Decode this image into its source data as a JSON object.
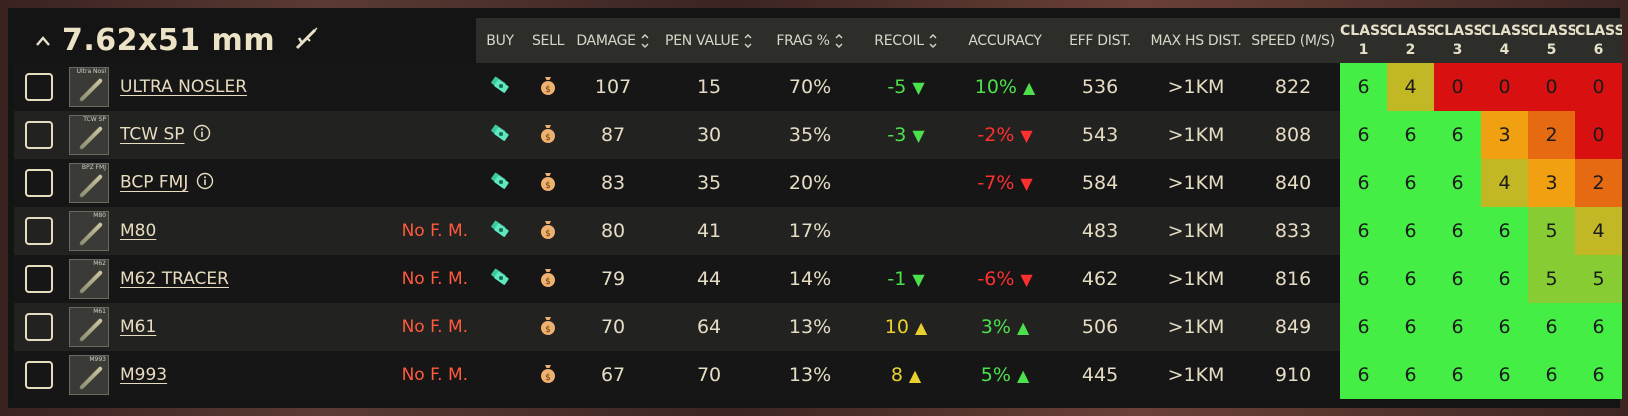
{
  "caliber": {
    "title": "7.62x51 mm",
    "collapse_icon": "chevron-up-icon",
    "rifle_icon": "rifle-icon"
  },
  "headers": {
    "buy": "BUY",
    "sell": "SELL",
    "damage": "DAMAGE",
    "pen": "PEN VALUE",
    "frag": "FRAG %",
    "recoil": "RECOIL",
    "accuracy": "ACCURACY",
    "eff": "EFF DIST.",
    "maxhs": "MAX HS DIST.",
    "speed": "SPEED (M/S)",
    "class_word": "CLASS",
    "class_nums": [
      "1",
      "2",
      "3",
      "4",
      "5",
      "6"
    ]
  },
  "colors": {
    "c6": "#44ee44",
    "c5": "#88cc33",
    "c4": "#c2b724",
    "c3": "#f0a010",
    "c2": "#e66a12",
    "c0": "#d81010"
  },
  "rows": [
    {
      "name": "ULTRA NOSLER",
      "thumb": "Ultra Nosl",
      "info": false,
      "nofm": "",
      "buy": true,
      "sell": true,
      "damage": "107",
      "pen": "15",
      "frag": "70%",
      "recoil": "-5",
      "recoil_dir": "down",
      "recoil_color": "pos",
      "accuracy": "10%",
      "accuracy_dir": "up",
      "accuracy_color": "pos",
      "eff": "536",
      "maxhs": ">1KM",
      "speed": "822",
      "classes": [
        "6",
        "4",
        "0",
        "0",
        "0",
        "0"
      ]
    },
    {
      "name": "TCW SP",
      "thumb": "TCW SP",
      "info": true,
      "nofm": "",
      "buy": true,
      "sell": true,
      "damage": "87",
      "pen": "30",
      "frag": "35%",
      "recoil": "-3",
      "recoil_dir": "down",
      "recoil_color": "pos",
      "accuracy": "-2%",
      "accuracy_dir": "down",
      "accuracy_color": "neg",
      "eff": "543",
      "maxhs": ">1KM",
      "speed": "808",
      "classes": [
        "6",
        "6",
        "6",
        "3",
        "2",
        "0"
      ]
    },
    {
      "name": "BCP FMJ",
      "thumb": "BPZ FMJ",
      "info": true,
      "nofm": "",
      "buy": true,
      "sell": true,
      "damage": "83",
      "pen": "35",
      "frag": "20%",
      "recoil": "",
      "recoil_dir": "",
      "recoil_color": "",
      "accuracy": "-7%",
      "accuracy_dir": "down",
      "accuracy_color": "neg",
      "eff": "584",
      "maxhs": ">1KM",
      "speed": "840",
      "classes": [
        "6",
        "6",
        "6",
        "4",
        "3",
        "2"
      ]
    },
    {
      "name": "M80",
      "thumb": "M80",
      "info": false,
      "nofm": "No F. M.",
      "buy": true,
      "sell": true,
      "damage": "80",
      "pen": "41",
      "frag": "17%",
      "recoil": "",
      "recoil_dir": "",
      "recoil_color": "",
      "accuracy": "",
      "accuracy_dir": "",
      "accuracy_color": "",
      "eff": "483",
      "maxhs": ">1KM",
      "speed": "833",
      "classes": [
        "6",
        "6",
        "6",
        "6",
        "5",
        "4"
      ]
    },
    {
      "name": "M62 TRACER",
      "thumb": "M62",
      "info": false,
      "nofm": "No F. M.",
      "buy": true,
      "sell": true,
      "damage": "79",
      "pen": "44",
      "frag": "14%",
      "recoil": "-1",
      "recoil_dir": "down",
      "recoil_color": "pos",
      "accuracy": "-6%",
      "accuracy_dir": "down",
      "accuracy_color": "neg",
      "eff": "462",
      "maxhs": ">1KM",
      "speed": "816",
      "classes": [
        "6",
        "6",
        "6",
        "6",
        "5",
        "5"
      ]
    },
    {
      "name": "M61",
      "thumb": "M61",
      "info": false,
      "nofm": "No F. M.",
      "buy": false,
      "sell": true,
      "damage": "70",
      "pen": "64",
      "frag": "13%",
      "recoil": "10",
      "recoil_dir": "up",
      "recoil_color": "yel",
      "accuracy": "3%",
      "accuracy_dir": "up",
      "accuracy_color": "pos",
      "eff": "506",
      "maxhs": ">1KM",
      "speed": "849",
      "classes": [
        "6",
        "6",
        "6",
        "6",
        "6",
        "6"
      ]
    },
    {
      "name": "M993",
      "thumb": "M993",
      "info": false,
      "nofm": "No F. M.",
      "buy": false,
      "sell": true,
      "damage": "67",
      "pen": "70",
      "frag": "13%",
      "recoil": "8",
      "recoil_dir": "up",
      "recoil_color": "yel",
      "accuracy": "5%",
      "accuracy_dir": "up",
      "accuracy_color": "pos",
      "eff": "445",
      "maxhs": ">1KM",
      "speed": "910",
      "classes": [
        "6",
        "6",
        "6",
        "6",
        "6",
        "6"
      ]
    }
  ]
}
